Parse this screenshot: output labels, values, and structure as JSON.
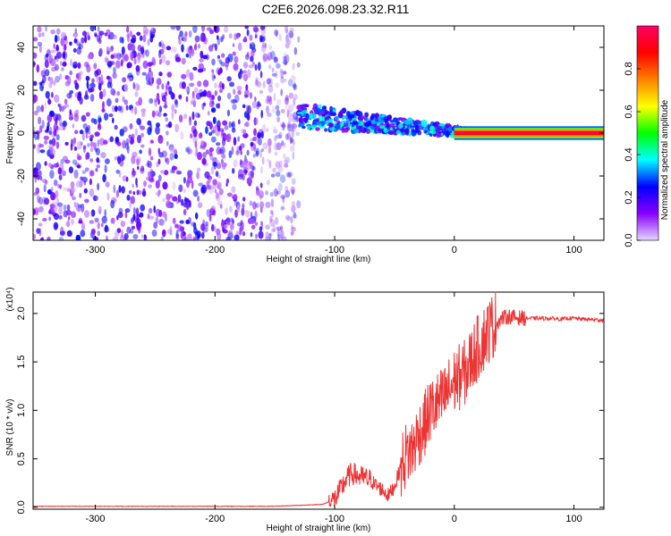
{
  "title": "C2E6.2026.098.23.32.R11",
  "chart_data": [
    {
      "type": "heatmap",
      "title": "C2E6.2026.098.23.32.R11",
      "xlabel": "Height of straight line (km)",
      "ylabel": "Frequency (Hz)",
      "xlim": [
        -352,
        125
      ],
      "ylim": [
        -50,
        50
      ],
      "x_ticks": [
        "-300",
        "-200",
        "-100",
        "0",
        "100"
      ],
      "x_tick_values": [
        -300,
        -200,
        -100,
        0,
        100
      ],
      "y_ticks": [
        "-40",
        "-20",
        "0",
        "20",
        "40"
      ],
      "y_tick_values": [
        -40,
        -20,
        0,
        20,
        40
      ],
      "colorbar": {
        "label": "Normalized spectral amplitude",
        "range": [
          0.0,
          1.0
        ],
        "ticks": [
          "0.0",
          "0.2",
          "0.4",
          "0.6",
          "0.8"
        ],
        "tick_values": [
          0.0,
          0.2,
          0.4,
          0.6,
          0.8
        ],
        "colors": [
          "#e6d6ff",
          "#8800ff",
          "#0000ff",
          "#00ffff",
          "#00ff00",
          "#ffff00",
          "#ff8000",
          "#ff0000",
          "#ff0066"
        ]
      },
      "regions": [
        {
          "name": "noise",
          "x_range": [
            -352,
            -130
          ],
          "y_range": [
            -50,
            50
          ],
          "amplitude": 0.12
        },
        {
          "name": "signal-scatter",
          "x_range": [
            -130,
            15
          ],
          "y_center_start": 8,
          "y_center_end": 0,
          "amplitude": 0.35
        },
        {
          "name": "carrier-line",
          "x_range": [
            0,
            125
          ],
          "y": 0,
          "amplitude": 1.0
        }
      ]
    },
    {
      "type": "line",
      "xlabel": "Height of straight line (km)",
      "ylabel": "SNR (10 * v/v)",
      "scale_label": "(x10⁴)",
      "xlim": [
        -352,
        125
      ],
      "ylim": [
        -0.02,
        2.22
      ],
      "x_ticks": [
        "-300",
        "-200",
        "-100",
        "0",
        "100"
      ],
      "x_tick_values": [
        -300,
        -200,
        -100,
        0,
        100
      ],
      "y_ticks": [
        "0.0",
        "0.5",
        "1.0",
        "1.5",
        "2.0"
      ],
      "y_tick_values": [
        0.0,
        0.5,
        1.0,
        1.5,
        2.0
      ],
      "line_color": "#ee3333",
      "series": [
        {
          "name": "SNR",
          "x": [
            -352,
            -300,
            -250,
            -200,
            -150,
            -110,
            -100,
            -95,
            -90,
            -85,
            -80,
            -75,
            -70,
            -65,
            -60,
            -55,
            -50,
            -45,
            -40,
            -35,
            -30,
            -25,
            -20,
            -15,
            -10,
            -5,
            0,
            5,
            10,
            15,
            20,
            25,
            30,
            35,
            40,
            45,
            50,
            60,
            70,
            80,
            90,
            95,
            100,
            110,
            125
          ],
          "y": [
            0.01,
            0.01,
            0.01,
            0.01,
            0.01,
            0.03,
            0.08,
            0.18,
            0.3,
            0.35,
            0.32,
            0.3,
            0.28,
            0.22,
            0.18,
            0.12,
            0.22,
            0.4,
            0.55,
            0.6,
            0.75,
            0.85,
            1.0,
            1.05,
            1.1,
            1.2,
            1.3,
            1.35,
            1.4,
            1.55,
            1.65,
            1.75,
            1.85,
            1.9,
            1.95,
            1.97,
            1.96,
            1.95,
            1.95,
            1.95,
            1.94,
            1.95,
            1.95,
            1.94,
            1.93
          ]
        }
      ]
    }
  ]
}
